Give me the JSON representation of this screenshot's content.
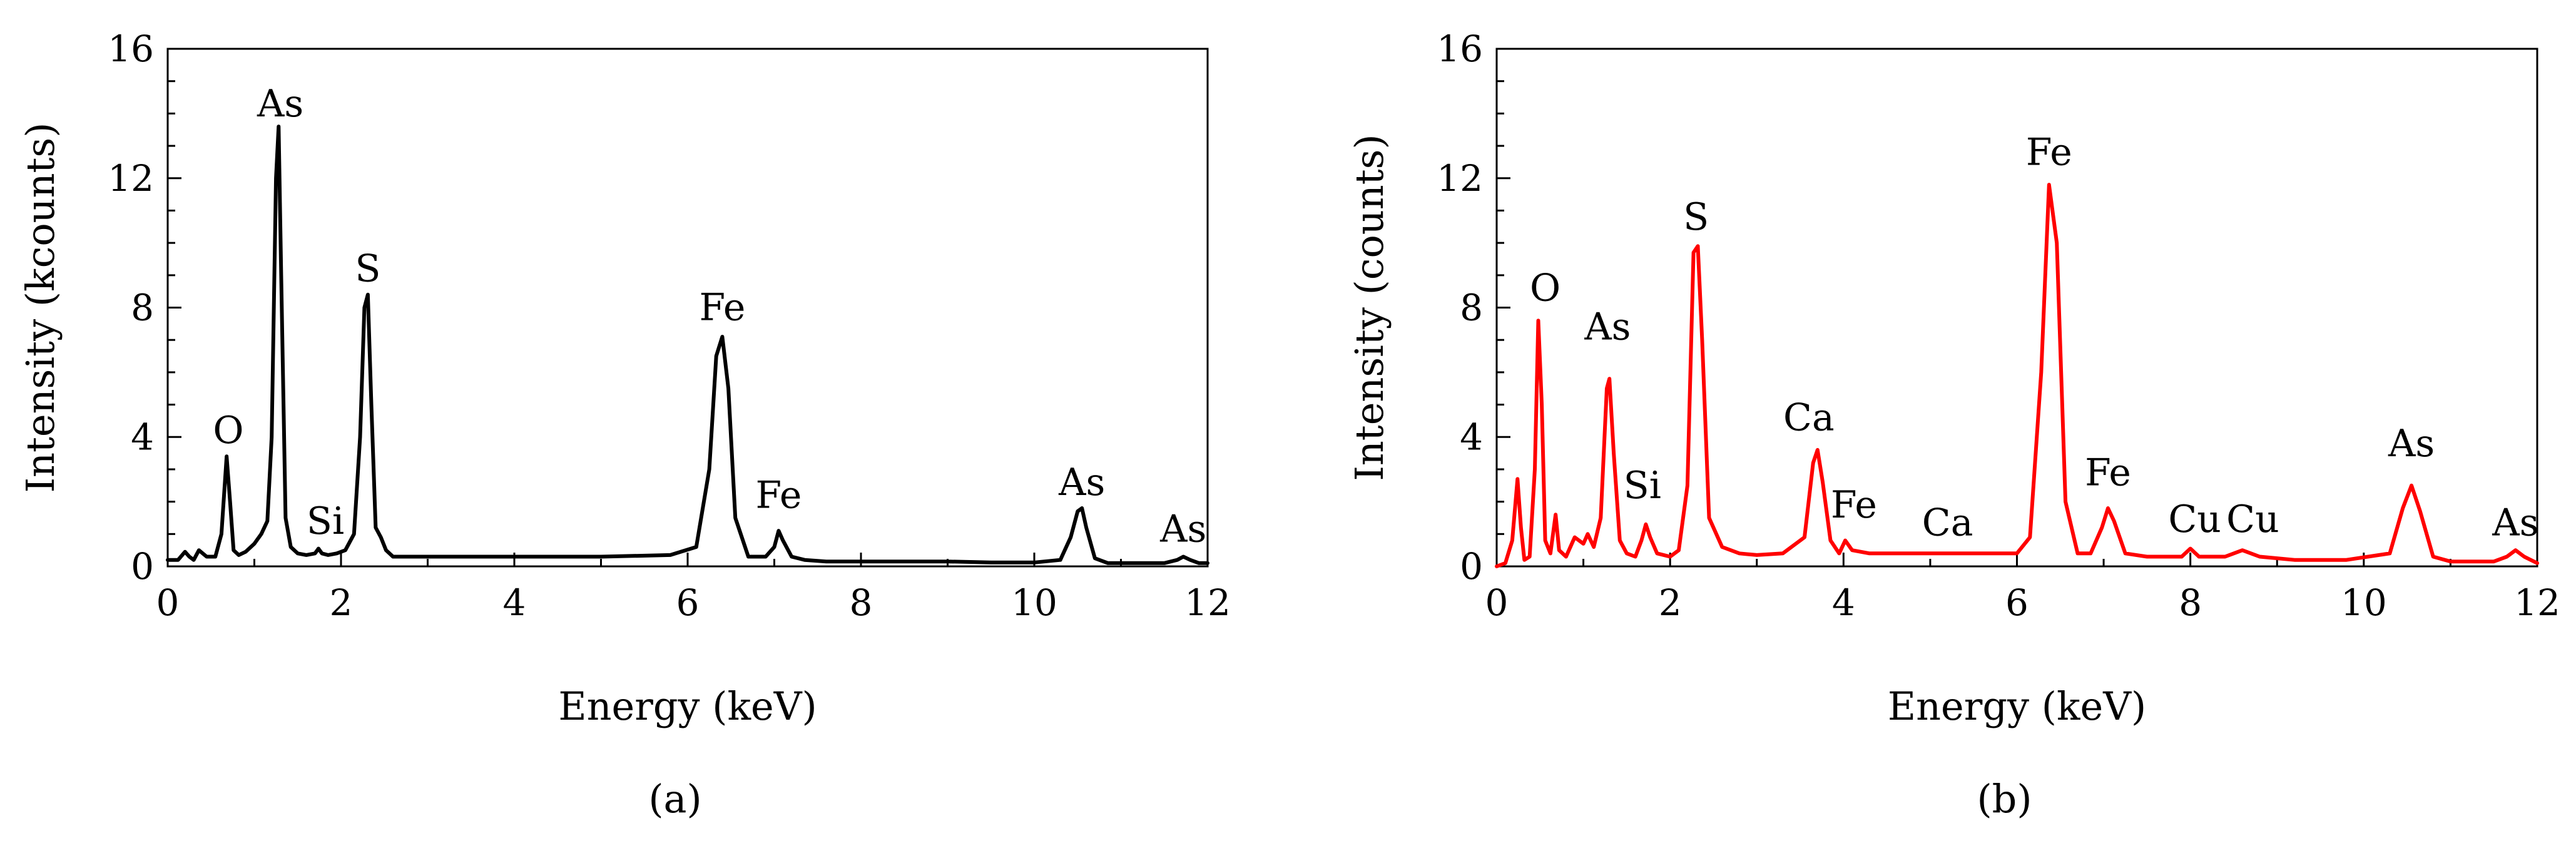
{
  "chart_data": [
    {
      "type": "line",
      "panel_label": "(a)",
      "xlabel": "Energy (keV)",
      "ylabel": "Intensity (kcounts)",
      "xlim": [
        0,
        12
      ],
      "ylim": [
        0,
        16
      ],
      "xticks": [
        "0",
        "2",
        "4",
        "6",
        "8",
        "10",
        "12"
      ],
      "yticks": [
        "0",
        "4",
        "8",
        "12",
        "16"
      ],
      "grid": false,
      "line_color": "#000000",
      "baseline": 0.3,
      "series": [
        {
          "x": [
            0.0,
            0.12,
            0.2,
            0.25,
            0.3,
            0.36,
            0.45,
            0.55,
            0.62,
            0.68,
            0.72,
            0.76,
            0.82,
            0.9,
            1.0,
            1.08,
            1.15,
            1.2,
            1.25,
            1.28,
            1.31,
            1.36,
            1.42,
            1.5,
            1.6,
            1.7,
            1.74,
            1.78,
            1.85,
            1.95,
            2.05,
            2.15,
            2.22,
            2.27,
            2.31,
            2.35,
            2.4,
            2.46,
            2.52,
            2.6,
            2.8,
            3.2,
            4.0,
            5.0,
            5.8,
            6.1,
            6.25,
            6.33,
            6.4,
            6.47,
            6.55,
            6.7,
            6.9,
            7.0,
            7.05,
            7.1,
            7.2,
            7.35,
            7.6,
            8.0,
            8.5,
            9.0,
            9.5,
            10.0,
            10.3,
            10.42,
            10.5,
            10.55,
            10.6,
            10.7,
            10.85,
            11.0,
            11.5,
            11.65,
            11.72,
            11.8,
            11.9,
            12.0
          ],
          "y": [
            0.2,
            0.2,
            0.45,
            0.3,
            0.2,
            0.5,
            0.3,
            0.3,
            1.0,
            3.4,
            2.0,
            0.5,
            0.35,
            0.45,
            0.7,
            1.0,
            1.4,
            4.0,
            12.0,
            13.6,
            9.0,
            1.5,
            0.6,
            0.4,
            0.35,
            0.4,
            0.55,
            0.4,
            0.35,
            0.4,
            0.5,
            1.0,
            4.0,
            8.0,
            8.4,
            5.0,
            1.2,
            0.9,
            0.5,
            0.3,
            0.3,
            0.3,
            0.3,
            0.3,
            0.35,
            0.6,
            3.0,
            6.5,
            7.1,
            5.5,
            1.5,
            0.3,
            0.3,
            0.6,
            1.1,
            0.8,
            0.3,
            0.2,
            0.15,
            0.15,
            0.15,
            0.15,
            0.12,
            0.12,
            0.2,
            0.9,
            1.7,
            1.8,
            1.2,
            0.25,
            0.1,
            0.1,
            0.1,
            0.2,
            0.3,
            0.2,
            0.1,
            0.1
          ]
        }
      ],
      "annotations": [
        {
          "text": "O",
          "x": 0.7,
          "y": 3.5
        },
        {
          "text": "As",
          "x": 1.3,
          "y": 13.6
        },
        {
          "text": "Si",
          "x": 1.82,
          "y": 0.7
        },
        {
          "text": "S",
          "x": 2.31,
          "y": 8.5
        },
        {
          "text": "Fe",
          "x": 6.4,
          "y": 7.3
        },
        {
          "text": "Fe",
          "x": 7.05,
          "y": 1.5
        },
        {
          "text": "As",
          "x": 10.55,
          "y": 1.9
        },
        {
          "text": "As",
          "x": 11.72,
          "y": 0.45
        }
      ]
    },
    {
      "type": "line",
      "panel_label": "(b)",
      "xlabel": "Energy (keV)",
      "ylabel": "Intensity (counts)",
      "xlim": [
        0,
        12
      ],
      "ylim": [
        0,
        16
      ],
      "xticks": [
        "0",
        "2",
        "4",
        "6",
        "8",
        "10",
        "12"
      ],
      "yticks": [
        "0",
        "4",
        "8",
        "12",
        "16"
      ],
      "grid": false,
      "line_color": "#ff0000",
      "baseline": 0.3,
      "series": [
        {
          "x": [
            0.0,
            0.1,
            0.18,
            0.24,
            0.28,
            0.32,
            0.38,
            0.44,
            0.48,
            0.52,
            0.56,
            0.62,
            0.68,
            0.72,
            0.8,
            0.9,
            1.0,
            1.05,
            1.12,
            1.2,
            1.27,
            1.3,
            1.35,
            1.42,
            1.5,
            1.6,
            1.67,
            1.72,
            1.77,
            1.85,
            2.0,
            2.1,
            2.2,
            2.27,
            2.32,
            2.37,
            2.45,
            2.6,
            2.8,
            3.0,
            3.3,
            3.55,
            3.65,
            3.7,
            3.76,
            3.85,
            3.95,
            4.02,
            4.1,
            4.3,
            4.7,
            5.0,
            5.3,
            5.7,
            6.0,
            6.15,
            6.28,
            6.37,
            6.46,
            6.56,
            6.7,
            6.85,
            6.98,
            7.05,
            7.12,
            7.25,
            7.5,
            7.9,
            8.0,
            8.1,
            8.4,
            8.6,
            8.8,
            9.2,
            9.8,
            10.3,
            10.45,
            10.55,
            10.65,
            10.8,
            11.0,
            11.5,
            11.65,
            11.75,
            11.85,
            12.0
          ],
          "y": [
            0.0,
            0.1,
            0.8,
            2.7,
            1.2,
            0.2,
            0.3,
            3.0,
            7.6,
            5.0,
            0.8,
            0.4,
            1.6,
            0.5,
            0.3,
            0.9,
            0.7,
            1.0,
            0.6,
            1.5,
            5.5,
            5.8,
            3.5,
            0.8,
            0.4,
            0.3,
            0.8,
            1.3,
            0.9,
            0.4,
            0.3,
            0.5,
            2.5,
            9.7,
            9.9,
            7.0,
            1.5,
            0.6,
            0.4,
            0.35,
            0.4,
            0.9,
            3.2,
            3.6,
            2.6,
            0.8,
            0.4,
            0.8,
            0.5,
            0.4,
            0.4,
            0.4,
            0.4,
            0.4,
            0.4,
            0.9,
            6.0,
            11.8,
            10.0,
            2.0,
            0.4,
            0.4,
            1.2,
            1.8,
            1.4,
            0.4,
            0.3,
            0.3,
            0.55,
            0.3,
            0.3,
            0.5,
            0.3,
            0.2,
            0.2,
            0.4,
            1.8,
            2.5,
            1.7,
            0.3,
            0.15,
            0.15,
            0.3,
            0.5,
            0.3,
            0.1
          ]
        }
      ],
      "annotations": [
        {
          "text": "O",
          "x": 0.56,
          "y": 7.9
        },
        {
          "text": "As",
          "x": 1.28,
          "y": 6.7
        },
        {
          "text": "Si",
          "x": 1.68,
          "y": 1.8
        },
        {
          "text": "S",
          "x": 2.3,
          "y": 10.1
        },
        {
          "text": "Ca",
          "x": 3.6,
          "y": 3.9
        },
        {
          "text": "Fe",
          "x": 4.12,
          "y": 1.2
        },
        {
          "text": "Ca",
          "x": 5.2,
          "y": 0.65
        },
        {
          "text": "Fe",
          "x": 6.37,
          "y": 12.1
        },
        {
          "text": "Fe",
          "x": 7.05,
          "y": 2.2
        },
        {
          "text": "Cu",
          "x": 8.05,
          "y": 0.75
        },
        {
          "text": "Cu",
          "x": 8.72,
          "y": 0.75
        },
        {
          "text": "As",
          "x": 10.55,
          "y": 3.1
        },
        {
          "text": "As",
          "x": 11.75,
          "y": 0.65
        }
      ]
    }
  ]
}
